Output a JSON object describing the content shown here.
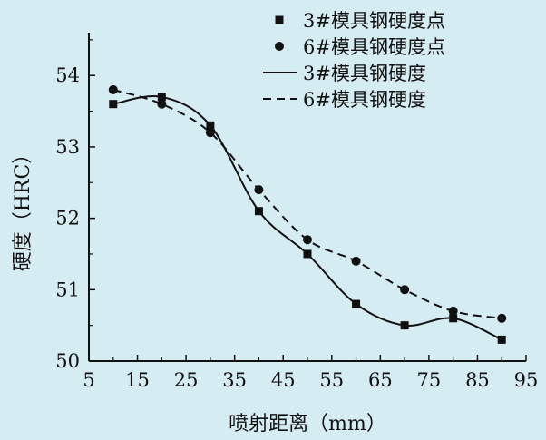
{
  "colors": {
    "background": "#d6ecf3",
    "ink": "#111111"
  },
  "chart_data": {
    "type": "line",
    "title": "",
    "xlabel": "喷射距离（mm）",
    "ylabel": "硬度（HRC）",
    "xlim": [
      5,
      95
    ],
    "ylim": [
      50,
      54.6
    ],
    "xticks": [
      5,
      15,
      25,
      35,
      45,
      55,
      65,
      75,
      85,
      95
    ],
    "yticks": [
      50,
      51,
      52,
      53,
      54
    ],
    "x": [
      10,
      20,
      30,
      40,
      50,
      60,
      70,
      80,
      90
    ],
    "grid": false,
    "legend_position": "top-right",
    "series": [
      {
        "name": "3#模具钢硬度点",
        "kind": "markers",
        "marker": "square",
        "values": [
          53.6,
          53.7,
          53.3,
          52.1,
          51.5,
          50.8,
          50.5,
          50.6,
          50.3
        ]
      },
      {
        "name": "6#模具钢硬度点",
        "kind": "markers",
        "marker": "circle",
        "values": [
          53.8,
          53.6,
          53.2,
          52.4,
          51.7,
          51.4,
          51.0,
          50.7,
          50.6
        ]
      },
      {
        "name": "3#模具钢硬度",
        "kind": "line",
        "dash": "solid",
        "values": [
          53.6,
          53.7,
          53.3,
          52.1,
          51.5,
          50.8,
          50.5,
          50.6,
          50.3
        ]
      },
      {
        "name": "6#模具钢硬度",
        "kind": "line",
        "dash": "dashed",
        "values": [
          53.8,
          53.6,
          53.2,
          52.4,
          51.7,
          51.4,
          51.0,
          50.7,
          50.6
        ]
      }
    ]
  }
}
